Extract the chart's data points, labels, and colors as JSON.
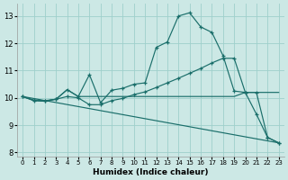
{
  "bg_color": "#cce8e5",
  "grid_color": "#9ecfcb",
  "line_color": "#1a6e6a",
  "xlabel": "Humidex (Indice chaleur)",
  "xlim": [
    -0.5,
    23.5
  ],
  "ylim": [
    7.85,
    13.45
  ],
  "xticks": [
    0,
    1,
    2,
    3,
    4,
    5,
    6,
    7,
    8,
    9,
    10,
    11,
    12,
    13,
    14,
    15,
    16,
    17,
    18,
    19,
    20,
    21,
    22,
    23
  ],
  "yticks": [
    8,
    9,
    10,
    11,
    12,
    13
  ],
  "line1_x": [
    0,
    1,
    2,
    3,
    4,
    5,
    6,
    7,
    8,
    9,
    10,
    11,
    12,
    13,
    14,
    15,
    16,
    17,
    18,
    19,
    20,
    21,
    22,
    23
  ],
  "line1_y": [
    10.05,
    9.9,
    9.88,
    9.95,
    10.3,
    10.05,
    10.85,
    9.82,
    10.28,
    10.35,
    10.5,
    10.55,
    11.85,
    12.05,
    13.0,
    13.12,
    12.6,
    12.4,
    11.55,
    10.25,
    10.2,
    9.4,
    8.55,
    8.35
  ],
  "line2_x": [
    0,
    1,
    2,
    3,
    4,
    5,
    6,
    7,
    8,
    9,
    10,
    11,
    12,
    13,
    14,
    15,
    16,
    17,
    18,
    19,
    20,
    21,
    22,
    23
  ],
  "line2_y": [
    10.05,
    9.92,
    9.9,
    9.95,
    10.05,
    10.0,
    9.75,
    9.75,
    9.9,
    9.98,
    10.12,
    10.22,
    10.38,
    10.55,
    10.72,
    10.9,
    11.08,
    11.28,
    11.45,
    11.45,
    10.2,
    10.2,
    8.55,
    8.35
  ],
  "line3_x": [
    0,
    1,
    2,
    3,
    4,
    5,
    6,
    7,
    8,
    9,
    10,
    11,
    12,
    13,
    14,
    15,
    16,
    17,
    18,
    19,
    20,
    21,
    22,
    23
  ],
  "line3_y": [
    10.05,
    9.9,
    9.88,
    9.95,
    10.3,
    10.05,
    10.05,
    10.05,
    10.05,
    10.05,
    10.05,
    10.05,
    10.05,
    10.05,
    10.05,
    10.05,
    10.05,
    10.05,
    10.05,
    10.05,
    10.2,
    10.2,
    10.2,
    10.2
  ],
  "line4_x": [
    0,
    23
  ],
  "line4_y": [
    10.05,
    8.35
  ]
}
